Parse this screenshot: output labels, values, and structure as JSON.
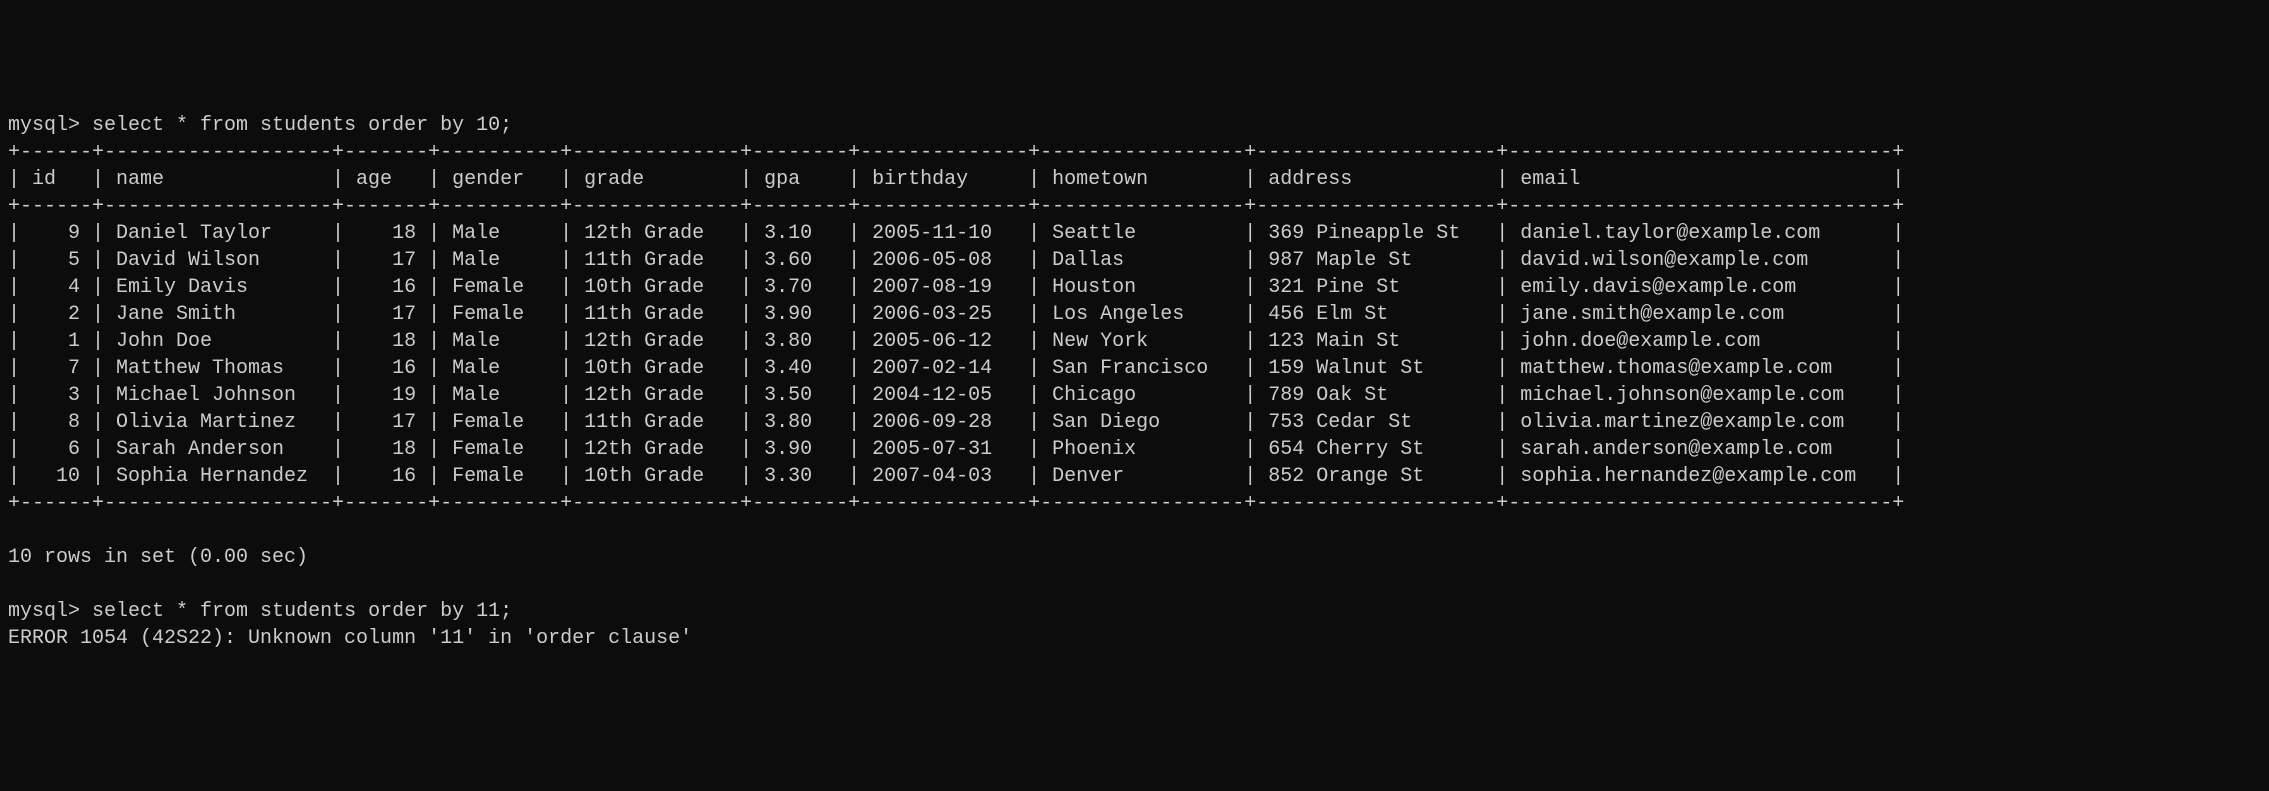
{
  "terminal": {
    "prompt": "mysql>",
    "query1": "select * from students order by 10;",
    "query2": "select * from students order by 11;",
    "error_message": "ERROR 1054 (42S22): Unknown column '11' in 'order clause'",
    "status_message": "10 rows in set (0.00 sec)",
    "background_color": "#0c0c0c",
    "text_color": "#cccccc",
    "font_family": "Courier New"
  },
  "table": {
    "columns": [
      {
        "name": "id",
        "width": 4
      },
      {
        "name": "name",
        "width": 17
      },
      {
        "name": "age",
        "width": 5
      },
      {
        "name": "gender",
        "width": 8
      },
      {
        "name": "grade",
        "width": 12
      },
      {
        "name": "gpa",
        "width": 6
      },
      {
        "name": "birthday",
        "width": 12
      },
      {
        "name": "hometown",
        "width": 15
      },
      {
        "name": "address",
        "width": 18
      },
      {
        "name": "email",
        "width": 30
      }
    ],
    "rows": [
      {
        "id": "9",
        "name": "Daniel Taylor",
        "age": "18",
        "gender": "Male",
        "grade": "12th Grade",
        "gpa": "3.10",
        "birthday": "2005-11-10",
        "hometown": "Seattle",
        "address": "369 Pineapple St",
        "email": "daniel.taylor@example.com"
      },
      {
        "id": "5",
        "name": "David Wilson",
        "age": "17",
        "gender": "Male",
        "grade": "11th Grade",
        "gpa": "3.60",
        "birthday": "2006-05-08",
        "hometown": "Dallas",
        "address": "987 Maple St",
        "email": "david.wilson@example.com"
      },
      {
        "id": "4",
        "name": "Emily Davis",
        "age": "16",
        "gender": "Female",
        "grade": "10th Grade",
        "gpa": "3.70",
        "birthday": "2007-08-19",
        "hometown": "Houston",
        "address": "321 Pine St",
        "email": "emily.davis@example.com"
      },
      {
        "id": "2",
        "name": "Jane Smith",
        "age": "17",
        "gender": "Female",
        "grade": "11th Grade",
        "gpa": "3.90",
        "birthday": "2006-03-25",
        "hometown": "Los Angeles",
        "address": "456 Elm St",
        "email": "jane.smith@example.com"
      },
      {
        "id": "1",
        "name": "John Doe",
        "age": "18",
        "gender": "Male",
        "grade": "12th Grade",
        "gpa": "3.80",
        "birthday": "2005-06-12",
        "hometown": "New York",
        "address": "123 Main St",
        "email": "john.doe@example.com"
      },
      {
        "id": "7",
        "name": "Matthew Thomas",
        "age": "16",
        "gender": "Male",
        "grade": "10th Grade",
        "gpa": "3.40",
        "birthday": "2007-02-14",
        "hometown": "San Francisco",
        "address": "159 Walnut St",
        "email": "matthew.thomas@example.com"
      },
      {
        "id": "3",
        "name": "Michael Johnson",
        "age": "19",
        "gender": "Male",
        "grade": "12th Grade",
        "gpa": "3.50",
        "birthday": "2004-12-05",
        "hometown": "Chicago",
        "address": "789 Oak St",
        "email": "michael.johnson@example.com"
      },
      {
        "id": "8",
        "name": "Olivia Martinez",
        "age": "17",
        "gender": "Female",
        "grade": "11th Grade",
        "gpa": "3.80",
        "birthday": "2006-09-28",
        "hometown": "San Diego",
        "address": "753 Cedar St",
        "email": "olivia.martinez@example.com"
      },
      {
        "id": "6",
        "name": "Sarah Anderson",
        "age": "18",
        "gender": "Female",
        "grade": "12th Grade",
        "gpa": "3.90",
        "birthday": "2005-07-31",
        "hometown": "Phoenix",
        "address": "654 Cherry St",
        "email": "sarah.anderson@example.com"
      },
      {
        "id": "10",
        "name": "Sophia Hernandez",
        "age": "16",
        "gender": "Female",
        "grade": "10th Grade",
        "gpa": "3.30",
        "birthday": "2007-04-03",
        "hometown": "Denver",
        "address": "852 Orange St",
        "email": "sophia.hernandez@example.com"
      }
    ]
  }
}
